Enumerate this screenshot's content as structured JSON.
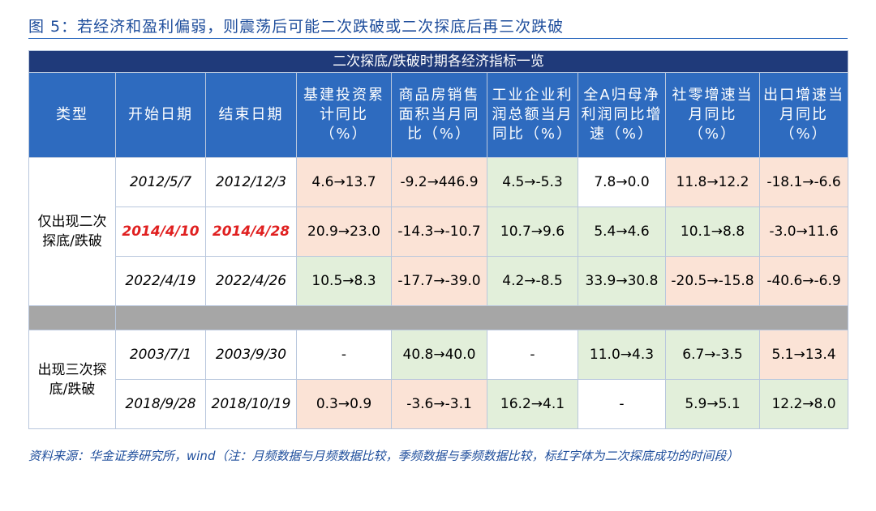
{
  "header": {
    "title": "图 5：若经济和盈利偏弱，则震荡后可能二次跌破或二次探底后再三次跌破"
  },
  "table": {
    "caption": "二次探底/跌破时期各经济指标一览",
    "columns": [
      [
        "类型"
      ],
      [
        "开始日期"
      ],
      [
        "结束日期"
      ],
      [
        "基建投资累",
        "计同比",
        "（%）"
      ],
      [
        "商品房销售",
        "面积当月同",
        "比（%）"
      ],
      [
        "工业企业利",
        "润总额当月",
        "同比（%）"
      ],
      [
        "全A归母净",
        "利润同比增",
        "速（%）"
      ],
      [
        "社零增速当",
        "月同比",
        "（%）"
      ],
      [
        "出口增速当",
        "月同比",
        "（%）"
      ]
    ],
    "fill_colors": {
      "pink": "#fbe3d6",
      "green": "#e2efda",
      "white": "#ffffff"
    },
    "highlight_color": "#e02020",
    "groups": [
      {
        "label": [
          "仅出现二次",
          "探底/跌破"
        ],
        "rows": [
          {
            "start": "2012/5/7",
            "end": "2012/12/3",
            "highlight": false,
            "values": [
              "4.6→13.7",
              "-9.2→446.9",
              "4.5→-5.3",
              "7.8→0.0",
              "11.8→12.2",
              "-18.1→-6.6"
            ],
            "fills": [
              "pink",
              "pink",
              "green",
              "white",
              "pink",
              "pink"
            ]
          },
          {
            "start": "2014/4/10",
            "end": "2014/4/28",
            "highlight": true,
            "values": [
              "20.9→23.0",
              "-14.3→-10.7",
              "10.7→9.6",
              "5.4→4.6",
              "10.1→8.8",
              "-3.0→11.6"
            ],
            "fills": [
              "pink",
              "pink",
              "green",
              "green",
              "green",
              "pink"
            ]
          },
          {
            "start": "2022/4/19",
            "end": "2022/4/26",
            "highlight": false,
            "values": [
              "10.5→8.3",
              "-17.7→-39.0",
              "4.2→-8.5",
              "33.9→30.8",
              "-20.5→-15.8",
              "-40.6→-6.9"
            ],
            "fills": [
              "green",
              "pink",
              "green",
              "green",
              "pink",
              "pink"
            ]
          }
        ]
      },
      {
        "label": [
          "出现三次探",
          "底/跌破"
        ],
        "rows": [
          {
            "start": "2003/7/1",
            "end": "2003/9/30",
            "highlight": false,
            "values": [
              "-",
              "40.8→40.0",
              "-",
              "11.0→4.3",
              "6.7→-3.5",
              "5.1→13.4"
            ],
            "fills": [
              "white",
              "green",
              "white",
              "green",
              "green",
              "pink"
            ]
          },
          {
            "start": "2018/9/28",
            "end": "2018/10/19",
            "highlight": false,
            "values": [
              "0.3→0.9",
              "-3.6→-3.1",
              "16.2→4.1",
              "-",
              "5.9→5.1",
              "12.2→8.0"
            ],
            "fills": [
              "pink",
              "pink",
              "green",
              "white",
              "green",
              "green"
            ]
          }
        ]
      }
    ]
  },
  "footnote": "资料来源：华金证券研究所，wind（注：月频数据与月频数据比较，季频数据与季频数据比较，标红字体为二次探底成功的时间段）"
}
